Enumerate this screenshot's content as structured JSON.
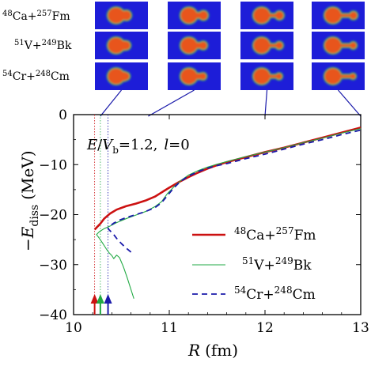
{
  "figure": {
    "reaction_labels": [
      "48Ca+257Fm",
      "51V+249Bk",
      "54Cr+248Cm"
    ],
    "annotation": "E/Vb=1.2, l=0",
    "annotation_parts": {
      "E": "E",
      "slash": "/",
      "V": "V",
      "b": "b",
      "eq": "=1.2,",
      "l": "l",
      "l_eq": "=0"
    },
    "xlabel_var": "R",
    "xlabel_unit": "(fm)",
    "ylabel_var": "−E",
    "ylabel_sub": "diss",
    "ylabel_unit": "(MeV)",
    "legend_parts": [
      {
        "sup1": "48",
        "el1": "Ca+",
        "sup2": "257",
        "el2": "Fm"
      },
      {
        "sup1": "51",
        "el1": "V+",
        "sup2": "249",
        "el2": "Bk"
      },
      {
        "sup1": "54",
        "el1": "Cr+",
        "sup2": "248",
        "el2": "Cm"
      }
    ],
    "row_label_parts": [
      {
        "sup1": "48",
        "el1": "Ca+",
        "sup2": "257",
        "el2": "Fm"
      },
      {
        "sup1": "51",
        "el1": "V+",
        "sup2": "249",
        "el2": "Bk"
      },
      {
        "sup1": "54",
        "el1": "Cr+",
        "sup2": "248",
        "el2": "Cm"
      }
    ],
    "colors": {
      "ca": "#cc1111",
      "v": "#22aa44",
      "cr": "#1a1aaa",
      "panel_bg": "#1d1dd8",
      "blob": "#e8541c",
      "blob_edge": "#27b86b"
    },
    "marker_arrow_colors": [
      "#cc1111",
      "#22aa44",
      "#1a1aaa"
    ],
    "marker_x": [
      10.22,
      10.28,
      10.36
    ]
  },
  "chart_data": {
    "type": "line",
    "xlabel": "R (fm)",
    "ylabel": "−E_diss (MeV)",
    "xlim": [
      10,
      13
    ],
    "ylim": [
      -40,
      0
    ],
    "xticks": [
      10,
      11,
      12,
      13
    ],
    "yticks": [
      0,
      -10,
      -20,
      -30,
      -40
    ],
    "legend_position": "bottom-right",
    "series": [
      {
        "name": "48Ca+257Fm",
        "style": "solid-thick",
        "x": [
          10.22,
          10.24,
          10.28,
          10.32,
          10.38,
          10.45,
          10.55,
          10.65,
          10.75,
          10.85,
          10.9,
          10.95,
          11.0,
          11.1,
          11.2,
          11.3,
          11.4,
          11.5,
          11.6,
          11.8,
          12.0,
          12.2,
          12.4,
          12.6,
          12.8,
          13.0
        ],
        "y": [
          -23.0,
          -22.6,
          -21.8,
          -20.8,
          -19.8,
          -19.0,
          -18.3,
          -17.8,
          -17.2,
          -16.4,
          -15.8,
          -15.2,
          -14.6,
          -13.5,
          -12.5,
          -11.6,
          -10.8,
          -10.1,
          -9.5,
          -8.5,
          -7.5,
          -6.6,
          -5.6,
          -4.6,
          -3.6,
          -2.6
        ]
      },
      {
        "name": "51V+249Bk",
        "style": "solid-thin",
        "x": [
          10.63,
          10.6,
          10.56,
          10.52,
          10.48,
          10.45,
          10.42,
          10.4,
          10.37,
          10.34,
          10.3,
          10.26,
          10.24,
          10.27,
          10.32,
          10.38,
          10.45,
          10.55,
          10.65,
          10.75,
          10.85,
          10.92,
          10.98,
          11.05,
          11.12,
          11.2,
          11.3,
          11.4,
          11.5,
          11.6,
          11.8,
          12.0,
          12.2,
          12.4,
          12.6,
          12.8,
          13.0
        ],
        "y": [
          -36.8,
          -35.0,
          -32.6,
          -30.4,
          -28.6,
          -28.1,
          -28.8,
          -28.2,
          -27.6,
          -26.8,
          -25.6,
          -24.5,
          -24.0,
          -23.4,
          -22.8,
          -22.3,
          -21.6,
          -20.8,
          -20.1,
          -19.4,
          -18.4,
          -17.4,
          -15.8,
          -14.4,
          -13.2,
          -12.1,
          -11.2,
          -10.5,
          -9.9,
          -9.4,
          -8.4,
          -7.5,
          -6.6,
          -5.6,
          -4.7,
          -3.7,
          -2.8
        ]
      },
      {
        "name": "54Cr+248Cm",
        "style": "dashed",
        "x": [
          10.6,
          10.55,
          10.5,
          10.46,
          10.42,
          10.38,
          10.36,
          10.38,
          10.42,
          10.48,
          10.55,
          10.65,
          10.75,
          10.85,
          10.92,
          10.98,
          11.05,
          11.12,
          11.2,
          11.3,
          11.4,
          11.5,
          11.6,
          11.8,
          12.0,
          12.2,
          12.4,
          12.6,
          12.8,
          13.0
        ],
        "y": [
          -27.5,
          -26.7,
          -25.8,
          -25.0,
          -24.0,
          -23.2,
          -22.8,
          -22.3,
          -21.7,
          -21.1,
          -20.6,
          -20.0,
          -19.4,
          -18.6,
          -17.6,
          -16.2,
          -14.6,
          -13.3,
          -12.3,
          -11.4,
          -10.7,
          -10.2,
          -9.8,
          -8.8,
          -7.9,
          -6.9,
          -5.9,
          -5.0,
          -4.0,
          -3.1
        ]
      }
    ]
  }
}
